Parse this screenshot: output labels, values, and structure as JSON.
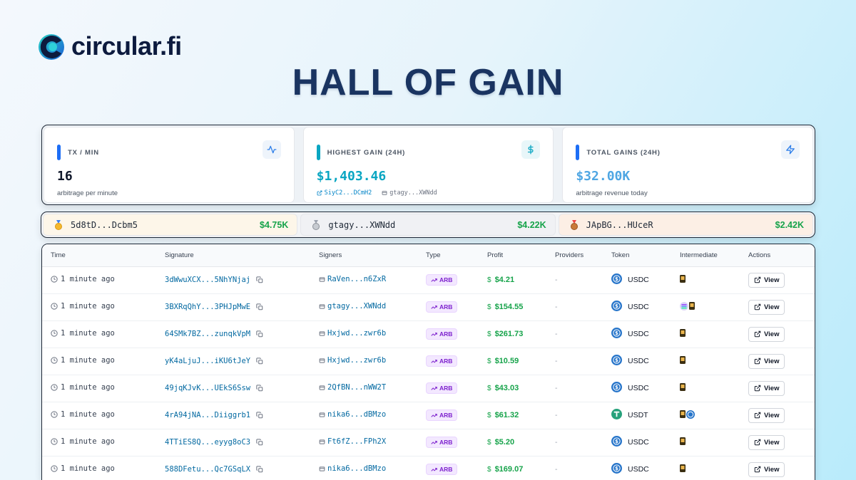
{
  "brand": {
    "name": "circular.fi"
  },
  "page": {
    "title": "HALL OF GAIN"
  },
  "stats": [
    {
      "label": "TX / MIN",
      "value": "16",
      "sub": "arbitrage per minute",
      "accent": "#1d6ef5",
      "value_color": "#0f172a",
      "icon": "activity-icon"
    },
    {
      "label": "HIGHEST GAIN (24H)",
      "value": "$1,403.46",
      "sub": "",
      "accent": "#0aa6c2",
      "value_color": "#0aa6c2",
      "icon": "dollar-icon",
      "links": [
        "SiyC2...DCmH2",
        "gtagy...XWNdd"
      ]
    },
    {
      "label": "TOTAL GAINS (24H)",
      "value": "$32.00K",
      "sub": "arbitrage revenue today",
      "accent": "#1d6ef5",
      "value_color": "#4fa6e3",
      "icon": "zap-icon"
    }
  ],
  "leaders": [
    {
      "rank": "gold",
      "address": "5d8tD...Dcbm5",
      "amount": "$4.75K"
    },
    {
      "rank": "silver",
      "address": "gtagy...XWNdd",
      "amount": "$4.22K"
    },
    {
      "rank": "bronze",
      "address": "JApBG...HUceR",
      "amount": "$2.42K"
    }
  ],
  "table": {
    "headers": [
      "Time",
      "Signature",
      "Signers",
      "Type",
      "Profit",
      "Providers",
      "Token",
      "Intermediate",
      "Actions"
    ],
    "rows": [
      {
        "time": "1 minute ago",
        "signature": "3dWwuXCX...5NhYNjaj",
        "signer": "RaVen...n6ZxR",
        "type": "ARB",
        "profit": "$4.21",
        "providers": "-",
        "token": "USDC",
        "intermediate": [
          "card"
        ],
        "action": "View"
      },
      {
        "time": "1 minute ago",
        "signature": "3BXRqQhY...3PHJpMwE",
        "signer": "gtagy...XWNdd",
        "type": "ARB",
        "profit": "$154.55",
        "providers": "-",
        "token": "USDC",
        "intermediate": [
          "sol",
          "card"
        ],
        "action": "View"
      },
      {
        "time": "1 minute ago",
        "signature": "64SMk7BZ...zunqkVpM",
        "signer": "Hxjwd...zwr6b",
        "type": "ARB",
        "profit": "$261.73",
        "providers": "-",
        "token": "USDC",
        "intermediate": [
          "card"
        ],
        "action": "View"
      },
      {
        "time": "1 minute ago",
        "signature": "yK4aLjuJ...iKU6tJeY",
        "signer": "Hxjwd...zwr6b",
        "type": "ARB",
        "profit": "$10.59",
        "providers": "-",
        "token": "USDC",
        "intermediate": [
          "card"
        ],
        "action": "View"
      },
      {
        "time": "1 minute ago",
        "signature": "49jqKJvK...UEkS6Ssw",
        "signer": "2QfBN...nWW2T",
        "type": "ARB",
        "profit": "$43.03",
        "providers": "-",
        "token": "USDC",
        "intermediate": [
          "card"
        ],
        "action": "View"
      },
      {
        "time": "1 minute ago",
        "signature": "4rA94jNA...Diiggrb1",
        "signer": "nika6...dBMzo",
        "type": "ARB",
        "profit": "$61.32",
        "providers": "-",
        "token": "USDT",
        "intermediate": [
          "card",
          "usdc"
        ],
        "action": "View"
      },
      {
        "time": "1 minute ago",
        "signature": "4TTiES8Q...eyyg8oC3",
        "signer": "Ft6fZ...FPh2X",
        "type": "ARB",
        "profit": "$5.20",
        "providers": "-",
        "token": "USDC",
        "intermediate": [
          "card"
        ],
        "action": "View"
      },
      {
        "time": "1 minute ago",
        "signature": "588DFetu...Qc7GSqLX",
        "signer": "nika6...dBMzo",
        "type": "ARB",
        "profit": "$169.07",
        "providers": "-",
        "token": "USDC",
        "intermediate": [
          "card"
        ],
        "action": "View"
      }
    ]
  }
}
